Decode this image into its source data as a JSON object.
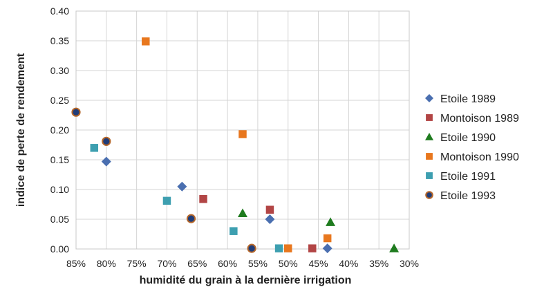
{
  "chart_data": {
    "type": "scatter",
    "xlabel": "humidité du grain à la dernière irrigation",
    "ylabel": "indice de perte de rendement",
    "x_axis_reversed": true,
    "xlim": [
      30,
      85
    ],
    "ylim": [
      0,
      0.4
    ],
    "x_ticks": [
      85,
      80,
      75,
      70,
      65,
      60,
      55,
      50,
      45,
      40,
      35,
      30
    ],
    "x_tick_labels": [
      "85%",
      "80%",
      "75%",
      "70%",
      "65%",
      "60%",
      "55%",
      "50%",
      "45%",
      "40%",
      "35%",
      "30%"
    ],
    "y_ticks": [
      0,
      0.05,
      0.1,
      0.15,
      0.2,
      0.25,
      0.3,
      0.35,
      0.4
    ],
    "y_tick_labels": [
      "0.00",
      "0.05",
      "0.10",
      "0.15",
      "0.20",
      "0.25",
      "0.30",
      "0.35",
      "0.40"
    ],
    "grid": true,
    "legend_position": "right",
    "series": [
      {
        "name": "Etoile 1989",
        "marker": "diamond",
        "color": "#4a6fb0",
        "points": [
          [
            80,
            0.147
          ],
          [
            67.5,
            0.105
          ],
          [
            53,
            0.05
          ],
          [
            43.5,
            0.001
          ]
        ]
      },
      {
        "name": "Montoison 1989",
        "marker": "square",
        "color": "#b24545",
        "points": [
          [
            64,
            0.084
          ],
          [
            53,
            0.066
          ],
          [
            46,
            0.001
          ]
        ]
      },
      {
        "name": "Etoile 1990",
        "marker": "triangle",
        "color": "#1e7b1e",
        "points": [
          [
            57.5,
            0.06
          ],
          [
            43,
            0.045
          ],
          [
            32.5,
            0.001
          ]
        ]
      },
      {
        "name": "Montoison 1990",
        "marker": "square",
        "color": "#e8771e",
        "points": [
          [
            73.5,
            0.349
          ],
          [
            57.5,
            0.193
          ],
          [
            43.5,
            0.018
          ],
          [
            50,
            0.001
          ]
        ]
      },
      {
        "name": "Etoile 1991",
        "marker": "square",
        "color": "#3d9fb0",
        "points": [
          [
            82,
            0.17
          ],
          [
            70,
            0.081
          ],
          [
            59,
            0.03
          ],
          [
            51.5,
            0.001
          ]
        ]
      },
      {
        "name": "Etoile 1993",
        "marker": "circle",
        "color": "#1f3c78",
        "edge_color": "#b5672a",
        "points": [
          [
            85,
            0.23
          ],
          [
            80,
            0.181
          ],
          [
            66,
            0.051
          ],
          [
            56,
            0.001
          ]
        ]
      }
    ]
  }
}
